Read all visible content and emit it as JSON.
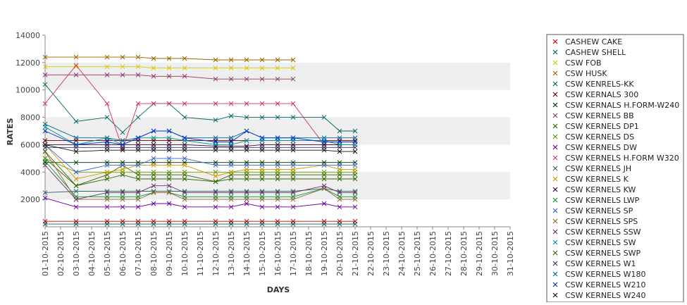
{
  "chart_data": {
    "type": "line",
    "title": "",
    "xlabel": "DAYS",
    "ylabel": "RATES",
    "ylim": [
      0,
      14000
    ],
    "y_ticks": [
      2000,
      4000,
      6000,
      8000,
      10000,
      12000,
      14000
    ],
    "grid": "alternating horizontal bands",
    "legend_position": "right",
    "categories": [
      "01-10-2015",
      "02-10-2015",
      "03-10-2015",
      "04-10-2015",
      "05-10-2015",
      "06-10-2015",
      "07-10-2015",
      "08-10-2015",
      "09-10-2015",
      "10-10-2015",
      "11-10-2015",
      "12-10-2015",
      "13-10-2015",
      "14-10-2015",
      "15-10-2015",
      "16-10-2015",
      "17-10-2015",
      "18-10-2015",
      "19-10-2015",
      "20-10-2015",
      "21-10-2015",
      "22-10-2015",
      "23-10-2015",
      "24-10-2015",
      "25-10-2015",
      "26-10-2015",
      "27-10-2015",
      "28-10-2015",
      "29-10-2015",
      "30-10-2015",
      "31-10-2015"
    ],
    "series": [
      {
        "name": "CASHEW CAKE",
        "color": "#cc0000",
        "values": [
          400,
          null,
          400,
          null,
          400,
          400,
          400,
          400,
          400,
          400,
          null,
          400,
          400,
          400,
          400,
          400,
          400,
          null,
          400,
          400,
          400,
          null,
          null,
          null,
          null,
          null,
          null,
          null,
          null,
          null,
          null
        ]
      },
      {
        "name": "CASHEW SHELL",
        "color": "#006666",
        "values": [
          200,
          null,
          200,
          null,
          200,
          200,
          200,
          200,
          200,
          200,
          null,
          200,
          200,
          200,
          200,
          200,
          200,
          null,
          200,
          200,
          200,
          null,
          null,
          null,
          null,
          null,
          null,
          null,
          null,
          null,
          null
        ]
      },
      {
        "name": "CSW FOB",
        "color": "#cccc00",
        "values": [
          11700,
          null,
          11700,
          null,
          11700,
          11700,
          11700,
          11600,
          11600,
          11600,
          null,
          11600,
          11600,
          11600,
          11600,
          11600,
          11600,
          null,
          null,
          null,
          null,
          null,
          null,
          null,
          null,
          null,
          null,
          null,
          null,
          null,
          null
        ]
      },
      {
        "name": "CSW HUSK",
        "color": "#996600",
        "values": [
          12400,
          null,
          12400,
          null,
          12400,
          12400,
          12400,
          12300,
          12300,
          12300,
          null,
          12200,
          12200,
          12200,
          12200,
          12200,
          12200,
          null,
          null,
          null,
          null,
          null,
          null,
          null,
          null,
          null,
          null,
          null,
          null,
          null,
          null
        ]
      },
      {
        "name": "CSW KENRELS-KK",
        "color": "#006666",
        "values": [
          10400,
          null,
          7700,
          null,
          8000,
          6900,
          8000,
          9000,
          9000,
          8000,
          null,
          7800,
          8100,
          8000,
          8000,
          8000,
          8000,
          null,
          8000,
          7000,
          7000,
          null,
          null,
          null,
          null,
          null,
          null,
          null,
          null,
          null,
          null
        ]
      },
      {
        "name": "CSW KERNALS 300",
        "color": "#660000",
        "values": [
          6300,
          null,
          6300,
          null,
          6300,
          6300,
          6300,
          6300,
          6300,
          6300,
          null,
          6300,
          6300,
          6300,
          6300,
          6300,
          6300,
          null,
          6300,
          6300,
          6300,
          null,
          null,
          null,
          null,
          null,
          null,
          null,
          null,
          null,
          null
        ]
      },
      {
        "name": "CSW KERNALS H.FORM-W240",
        "color": "#003300",
        "values": [
          4700,
          null,
          4700,
          null,
          4700,
          4700,
          4700,
          4700,
          4700,
          4700,
          null,
          4700,
          4700,
          4700,
          4700,
          4700,
          4700,
          null,
          4700,
          4700,
          4700,
          null,
          null,
          null,
          null,
          null,
          null,
          null,
          null,
          null,
          null
        ]
      },
      {
        "name": "CSW KERNELS BB",
        "color": "#993366",
        "values": [
          11100,
          null,
          11100,
          null,
          11100,
          11100,
          11100,
          11000,
          11000,
          11000,
          null,
          10800,
          10800,
          10800,
          10800,
          10800,
          10800,
          null,
          null,
          null,
          null,
          null,
          null,
          null,
          null,
          null,
          null,
          null,
          null,
          null,
          null
        ]
      },
      {
        "name": "CSW KERNELS DP1",
        "color": "#336600",
        "values": [
          5000,
          null,
          3000,
          null,
          3800,
          4500,
          3800,
          3800,
          3800,
          3800,
          null,
          3300,
          3800,
          3800,
          3800,
          3800,
          3800,
          null,
          3800,
          3800,
          3800,
          null,
          null,
          null,
          null,
          null,
          null,
          null,
          null,
          null,
          null
        ]
      },
      {
        "name": "CSW KERNELS DS",
        "color": "#669900",
        "values": [
          5000,
          null,
          4000,
          null,
          4000,
          4000,
          4000,
          4000,
          4000,
          4000,
          null,
          4000,
          4000,
          4000,
          4000,
          4000,
          4000,
          null,
          4000,
          4000,
          4000,
          null,
          null,
          null,
          null,
          null,
          null,
          null,
          null,
          null,
          null
        ]
      },
      {
        "name": "CSW KERNELS DW",
        "color": "#660099",
        "values": [
          2100,
          null,
          1450,
          null,
          1450,
          1450,
          1450,
          1700,
          1700,
          1450,
          null,
          1450,
          1450,
          1700,
          1450,
          1450,
          1450,
          null,
          1700,
          1450,
          1450,
          null,
          null,
          null,
          null,
          null,
          null,
          null,
          null,
          null,
          null
        ]
      },
      {
        "name": "CSW KERNELS H.FORM W320",
        "color": "#cc3366",
        "values": [
          9000,
          null,
          11800,
          null,
          9000,
          5700,
          9000,
          9000,
          9000,
          9000,
          null,
          9000,
          9000,
          9000,
          9000,
          9000,
          9000,
          null,
          6000,
          6000,
          6000,
          null,
          null,
          null,
          null,
          null,
          null,
          null,
          null,
          null,
          null
        ]
      },
      {
        "name": "CSW KERNELS JH",
        "color": "#336666",
        "values": [
          2500,
          null,
          2600,
          null,
          2600,
          2600,
          2600,
          2600,
          2600,
          2600,
          null,
          2600,
          2600,
          2600,
          2600,
          2600,
          2600,
          null,
          2800,
          2600,
          2600,
          null,
          null,
          null,
          null,
          null,
          null,
          null,
          null,
          null,
          null
        ]
      },
      {
        "name": "CSW KERNELS K",
        "color": "#cc9900",
        "values": [
          6000,
          null,
          3500,
          null,
          4000,
          4200,
          4500,
          4500,
          4500,
          4500,
          null,
          3700,
          4000,
          4200,
          4200,
          4200,
          4200,
          null,
          4500,
          4200,
          4200,
          null,
          null,
          null,
          null,
          null,
          null,
          null,
          null,
          null,
          null
        ]
      },
      {
        "name": "CSW KERNELS KW",
        "color": "#330033",
        "values": [
          6000,
          null,
          6000,
          null,
          6000,
          6000,
          6000,
          6000,
          6000,
          6000,
          null,
          5900,
          5900,
          5900,
          6000,
          6000,
          6000,
          null,
          6000,
          6000,
          6000,
          null,
          null,
          null,
          null,
          null,
          null,
          null,
          null,
          null,
          null
        ]
      },
      {
        "name": "CSW KERNELS LWP",
        "color": "#009933",
        "values": [
          4800,
          null,
          2200,
          null,
          2200,
          2200,
          2200,
          2500,
          2500,
          2200,
          null,
          2200,
          2200,
          2200,
          2200,
          2200,
          2200,
          null,
          2800,
          2200,
          2200,
          null,
          null,
          null,
          null,
          null,
          null,
          null,
          null,
          null,
          null
        ]
      },
      {
        "name": "CSW KERNELS SP",
        "color": "#3366cc",
        "values": [
          6000,
          null,
          4000,
          null,
          4500,
          4500,
          4500,
          5000,
          5000,
          5000,
          null,
          4500,
          4500,
          4500,
          4500,
          4500,
          4500,
          null,
          4500,
          4500,
          4500,
          null,
          null,
          null,
          null,
          null,
          null,
          null,
          null,
          null,
          null
        ]
      },
      {
        "name": "CSW KERNELS SPS",
        "color": "#996633",
        "values": [
          5500,
          null,
          2000,
          null,
          2000,
          2000,
          2000,
          2500,
          2500,
          2000,
          null,
          2000,
          2000,
          2000,
          2000,
          2000,
          2000,
          null,
          2800,
          2000,
          2000,
          null,
          null,
          null,
          null,
          null,
          null,
          null,
          null,
          null,
          null
        ]
      },
      {
        "name": "CSW KERNELS SSW",
        "color": "#663366",
        "values": [
          4500,
          null,
          2000,
          null,
          2500,
          2500,
          2500,
          3000,
          3000,
          2500,
          null,
          2500,
          2500,
          2500,
          2500,
          2500,
          2500,
          null,
          3000,
          2500,
          2500,
          null,
          null,
          null,
          null,
          null,
          null,
          null,
          null,
          null,
          null
        ]
      },
      {
        "name": "CSW KERNELS SW",
        "color": "#009999",
        "values": [
          7300,
          null,
          6000,
          null,
          6500,
          6000,
          6500,
          6500,
          6500,
          6300,
          null,
          6000,
          6000,
          6300,
          6300,
          6300,
          6300,
          null,
          6300,
          6000,
          6000,
          null,
          null,
          null,
          null,
          null,
          null,
          null,
          null,
          null,
          null
        ]
      },
      {
        "name": "CSW KERNELS SWP",
        "color": "#336600",
        "values": [
          5500,
          null,
          3000,
          null,
          3500,
          3800,
          3500,
          3500,
          3500,
          3500,
          null,
          3300,
          3500,
          3500,
          3500,
          3500,
          3500,
          null,
          3500,
          3500,
          3500,
          null,
          null,
          null,
          null,
          null,
          null,
          null,
          null,
          null,
          null
        ]
      },
      {
        "name": "CSW KERNELS W1",
        "color": "#333366",
        "values": [
          5800,
          null,
          5800,
          null,
          5800,
          5800,
          5800,
          5800,
          5800,
          5800,
          null,
          5800,
          5800,
          5800,
          5800,
          5800,
          5800,
          null,
          5800,
          5800,
          5800,
          null,
          null,
          null,
          null,
          null,
          null,
          null,
          null,
          null,
          null
        ]
      },
      {
        "name": "CSW KERNELS W180",
        "color": "#006699",
        "values": [
          7500,
          null,
          6500,
          null,
          6500,
          6300,
          6500,
          7000,
          7000,
          6500,
          null,
          6500,
          6500,
          7000,
          6500,
          6500,
          6500,
          null,
          6500,
          6500,
          6500,
          null,
          null,
          null,
          null,
          null,
          null,
          null,
          null,
          null,
          null
        ]
      },
      {
        "name": "CSW KERNELS W210",
        "color": "#0033cc",
        "values": [
          7000,
          null,
          6000,
          null,
          6200,
          6000,
          6500,
          7000,
          7000,
          6500,
          null,
          6200,
          6200,
          7000,
          6500,
          6500,
          6500,
          null,
          6200,
          6200,
          6200,
          null,
          null,
          null,
          null,
          null,
          null,
          null,
          null,
          null,
          null
        ]
      },
      {
        "name": "CSW KERNELS W240",
        "color": "#111111",
        "values": [
          6000,
          null,
          5500,
          null,
          5600,
          5600,
          5600,
          5600,
          5600,
          5600,
          null,
          5600,
          5600,
          5600,
          5600,
          5600,
          5600,
          null,
          5600,
          5500,
          5500,
          null,
          null,
          null,
          null,
          null,
          null,
          null,
          null,
          null,
          null
        ]
      }
    ]
  }
}
